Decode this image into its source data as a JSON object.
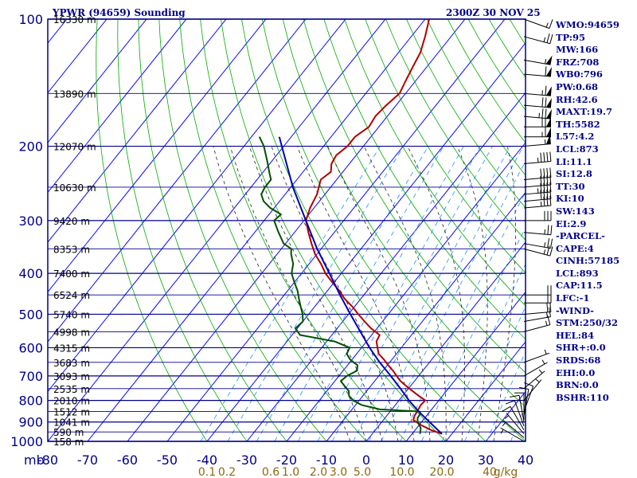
{
  "header": {
    "station": "YPWR (94659) Sounding",
    "time": "2300Z 30 NOV 25"
  },
  "indices": [
    "WMO:94659",
    "TP:95",
    "MW:166",
    "FRZ:708",
    "WB0:796",
    "PW:0.68",
    "RH:42.6",
    "MAXT:19.7",
    "TH:5582",
    "L57:4.2",
    "LCL:873",
    "LI:11.1",
    "SI:12.8",
    "TT:30",
    "KI:10",
    "SW:143",
    "EI:2.9",
    "-PARCEL-",
    "CAPE:4",
    "CINH:57185",
    "LCL:893",
    "CAP:11.5",
    "LFC:-1",
    "-WIND-",
    "STM:250/32",
    "HEL:84",
    "SHR+:0.0",
    "SRDS:68",
    "EHI:0.0",
    "BRN:0.0",
    "BSHR:110"
  ],
  "colors": {
    "isobar": "#00008b",
    "isotherm": "#0000ff",
    "dry_adiabat": "#00aa00",
    "moist_adiabat": "#222222",
    "mixing_ratio": "#1e90ff",
    "temperature": "#b00000",
    "dewpoint": "#005000",
    "parcel": "#0000b4",
    "wind_barb": "#000000"
  },
  "chart_data": {
    "type": "line",
    "title": "YPWR (94659) Sounding",
    "subtitle": "2300Z 30 NOV 25",
    "xlabel": "",
    "ylabel": "mb",
    "xlim": [
      -80,
      40
    ],
    "ylim": [
      1000,
      100
    ],
    "pressure_ticks": [
      100,
      200,
      300,
      400,
      500,
      600,
      700,
      800,
      900,
      1000
    ],
    "pressure_tick_labels": [
      "100",
      "200",
      "300",
      "400",
      "500",
      "600",
      "700",
      "800",
      "900",
      "1000"
    ],
    "temperature_ticks": [
      -80,
      -70,
      -60,
      -50,
      -40,
      -30,
      -20,
      -10,
      0,
      10,
      20,
      30,
      40
    ],
    "temperature_tick_labels": [
      "-80",
      "-70",
      "-60",
      "-50",
      "-40",
      "-30",
      "-20",
      "-10",
      "0",
      "10",
      "20",
      "30",
      "40"
    ],
    "mb_label": "mb",
    "mixing_ratio_labels": [
      {
        "text": "0.1",
        "temp_c": -40
      },
      {
        "text": "0.2",
        "temp_c": -35
      },
      {
        "text": "0.6",
        "temp_c": -24
      },
      {
        "text": "1.0",
        "temp_c": -19
      },
      {
        "text": "2.0",
        "temp_c": -12
      },
      {
        "text": "3.0",
        "temp_c": -7
      },
      {
        "text": "5.0",
        "temp_c": -1
      },
      {
        "text": "10.0",
        "temp_c": 9
      },
      {
        "text": "20.0",
        "temp_c": 19
      },
      {
        "text": "40",
        "temp_c": 31
      },
      {
        "text": "g/kg",
        "temp_c": 35
      }
    ],
    "height_labels": [
      {
        "p": 100,
        "text": "16330 m"
      },
      {
        "p": 150,
        "text": "13890 m"
      },
      {
        "p": 200,
        "text": "12070 m"
      },
      {
        "p": 250,
        "text": "10630 m"
      },
      {
        "p": 300,
        "text": "9420 m"
      },
      {
        "p": 350,
        "text": "8353 m"
      },
      {
        "p": 400,
        "text": "7400 m"
      },
      {
        "p": 450,
        "text": "6524 m"
      },
      {
        "p": 500,
        "text": "5740 m"
      },
      {
        "p": 550,
        "text": "4998 m"
      },
      {
        "p": 600,
        "text": "4315 m"
      },
      {
        "p": 650,
        "text": "3683 m"
      },
      {
        "p": 700,
        "text": "3093 m"
      },
      {
        "p": 750,
        "text": "2535 m"
      },
      {
        "p": 800,
        "text": "2010 m"
      },
      {
        "p": 850,
        "text": "1512 m"
      },
      {
        "p": 900,
        "text": "1041 m"
      },
      {
        "p": 950,
        "text": "590 m"
      },
      {
        "p": 1000,
        "text": "158 m"
      }
    ],
    "series": [
      {
        "key": "temperature",
        "points": [
          [
            960,
            17.5
          ],
          [
            940,
            14.0
          ],
          [
            915,
            10.5
          ],
          [
            890,
            7.5
          ],
          [
            870,
            7.0
          ],
          [
            850,
            6.8
          ],
          [
            820,
            6.4
          ],
          [
            800,
            6.6
          ],
          [
            780,
            4.0
          ],
          [
            760,
            1.5
          ],
          [
            740,
            -1.0
          ],
          [
            720,
            -3.5
          ],
          [
            700,
            -5.5
          ],
          [
            680,
            -7.5
          ],
          [
            660,
            -9.8
          ],
          [
            640,
            -12.0
          ],
          [
            620,
            -14.5
          ],
          [
            600,
            -16.0
          ],
          [
            580,
            -17.5
          ],
          [
            560,
            -18.0
          ],
          [
            540,
            -21.5
          ],
          [
            520,
            -24.5
          ],
          [
            500,
            -27.5
          ],
          [
            480,
            -30.5
          ],
          [
            460,
            -34.0
          ],
          [
            440,
            -37.0
          ],
          [
            420,
            -40.5
          ],
          [
            400,
            -44.0
          ],
          [
            380,
            -47.0
          ],
          [
            360,
            -50.5
          ],
          [
            340,
            -53.5
          ],
          [
            320,
            -56.5
          ],
          [
            300,
            -59.5
          ],
          [
            280,
            -61.0
          ],
          [
            260,
            -62.0
          ],
          [
            240,
            -64.0
          ],
          [
            230,
            -63.0
          ],
          [
            220,
            -64.5
          ],
          [
            210,
            -65.0
          ],
          [
            200,
            -64.0
          ],
          [
            190,
            -64.0
          ],
          [
            180,
            -62.5
          ],
          [
            170,
            -63.0
          ],
          [
            160,
            -62.5
          ],
          [
            150,
            -61.5
          ],
          [
            140,
            -62.5
          ],
          [
            130,
            -63.5
          ],
          [
            120,
            -64.5
          ],
          [
            110,
            -66.5
          ],
          [
            100,
            -69.0
          ]
        ]
      },
      {
        "key": "dewpoint",
        "points": [
          [
            960,
            12.0
          ],
          [
            930,
            11.0
          ],
          [
            900,
            9.0
          ],
          [
            880,
            8.2
          ],
          [
            860,
            8.0
          ],
          [
            850,
            7.5
          ],
          [
            840,
            -3.0
          ],
          [
            820,
            -8.5
          ],
          [
            800,
            -11.5
          ],
          [
            780,
            -13.5
          ],
          [
            760,
            -14.5
          ],
          [
            740,
            -16.5
          ],
          [
            720,
            -18.5
          ],
          [
            700,
            -18.0
          ],
          [
            680,
            -16.5
          ],
          [
            660,
            -17.5
          ],
          [
            640,
            -20.5
          ],
          [
            620,
            -22.5
          ],
          [
            600,
            -23.0
          ],
          [
            580,
            -28.0
          ],
          [
            560,
            -38.0
          ],
          [
            540,
            -40.5
          ],
          [
            520,
            -40.0
          ],
          [
            500,
            -41.5
          ],
          [
            480,
            -43.5
          ],
          [
            460,
            -45.5
          ],
          [
            440,
            -47.5
          ],
          [
            420,
            -50.0
          ],
          [
            400,
            -52.5
          ],
          [
            380,
            -54.0
          ],
          [
            360,
            -56.5
          ],
          [
            350,
            -57.5
          ],
          [
            340,
            -60.5
          ],
          [
            320,
            -64.0
          ],
          [
            300,
            -67.5
          ],
          [
            290,
            -67.0
          ],
          [
            280,
            -71.0
          ],
          [
            270,
            -74.0
          ],
          [
            260,
            -76.0
          ],
          [
            250,
            -76.5
          ],
          [
            240,
            -76.5
          ],
          [
            230,
            -78.5
          ],
          [
            220,
            -80.5
          ],
          [
            200,
            -85.0
          ],
          [
            190,
            -88.0
          ]
        ]
      },
      {
        "key": "parcel",
        "points": [
          [
            960,
            17.5
          ],
          [
            900,
            12.0
          ],
          [
            850,
            7.2
          ],
          [
            800,
            2.5
          ],
          [
            750,
            -2.0
          ],
          [
            700,
            -7.0
          ],
          [
            650,
            -12.5
          ],
          [
            600,
            -18.0
          ],
          [
            550,
            -23.5
          ],
          [
            500,
            -29.5
          ],
          [
            450,
            -36.0
          ],
          [
            400,
            -43.0
          ],
          [
            350,
            -51.0
          ],
          [
            300,
            -59.5
          ],
          [
            250,
            -69.5
          ],
          [
            200,
            -80.5
          ],
          [
            190,
            -83.0
          ]
        ]
      }
    ],
    "wind_barbs": [
      {
        "p": 100,
        "dir": 290,
        "kt": 15
      },
      {
        "p": 110,
        "dir": 285,
        "kt": 25
      },
      {
        "p": 125,
        "dir": 280,
        "kt": 55
      },
      {
        "p": 135,
        "dir": 275,
        "kt": 60
      },
      {
        "p": 150,
        "dir": 275,
        "kt": 65
      },
      {
        "p": 160,
        "dir": 275,
        "kt": 70
      },
      {
        "p": 170,
        "dir": 275,
        "kt": 75
      },
      {
        "p": 180,
        "dir": 270,
        "kt": 70
      },
      {
        "p": 190,
        "dir": 270,
        "kt": 65
      },
      {
        "p": 200,
        "dir": 265,
        "kt": 55
      },
      {
        "p": 220,
        "dir": 265,
        "kt": 45
      },
      {
        "p": 240,
        "dir": 265,
        "kt": 40
      },
      {
        "p": 250,
        "dir": 265,
        "kt": 40
      },
      {
        "p": 260,
        "dir": 265,
        "kt": 45
      },
      {
        "p": 270,
        "dir": 265,
        "kt": 40
      },
      {
        "p": 280,
        "dir": 265,
        "kt": 35
      },
      {
        "p": 300,
        "dir": 270,
        "kt": 30
      },
      {
        "p": 320,
        "dir": 275,
        "kt": 25
      },
      {
        "p": 340,
        "dir": 280,
        "kt": 25
      },
      {
        "p": 350,
        "dir": 285,
        "kt": 25
      },
      {
        "p": 450,
        "dir": 270,
        "kt": 20
      },
      {
        "p": 470,
        "dir": 270,
        "kt": 20
      },
      {
        "p": 500,
        "dir": 265,
        "kt": 20
      },
      {
        "p": 520,
        "dir": 260,
        "kt": 15
      },
      {
        "p": 550,
        "dir": 255,
        "kt": 15
      },
      {
        "p": 650,
        "dir": 250,
        "kt": 5
      },
      {
        "p": 700,
        "dir": 240,
        "kt": 5
      },
      {
        "p": 750,
        "dir": 230,
        "kt": 5
      },
      {
        "p": 800,
        "dir": 220,
        "kt": 5
      },
      {
        "p": 850,
        "dir": 200,
        "kt": 10
      },
      {
        "p": 870,
        "dir": 190,
        "kt": 10
      },
      {
        "p": 890,
        "dir": 180,
        "kt": 10
      },
      {
        "p": 900,
        "dir": 170,
        "kt": 10
      },
      {
        "p": 920,
        "dir": 160,
        "kt": 10
      },
      {
        "p": 940,
        "dir": 150,
        "kt": 10
      },
      {
        "p": 960,
        "dir": 140,
        "kt": 5
      },
      {
        "p": 980,
        "dir": 130,
        "kt": 5
      },
      {
        "p": 1000,
        "dir": 120,
        "kt": 5
      }
    ]
  }
}
